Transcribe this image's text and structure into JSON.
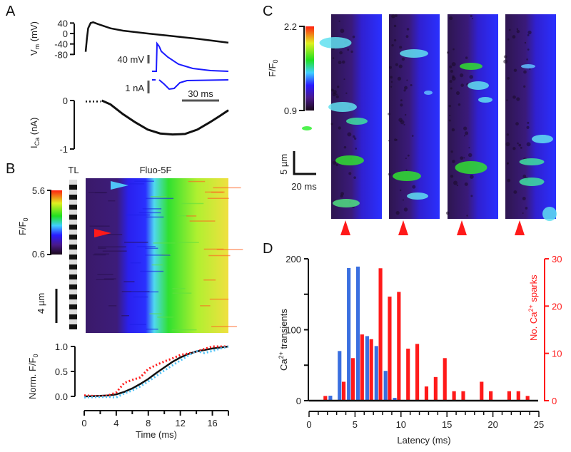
{
  "panels": {
    "a": "A",
    "b": "B",
    "c": "C",
    "d": "D"
  },
  "colors": {
    "blue_trace": "#1a1aff",
    "red": "#ff1a1a",
    "cyan": "#4fc3f7",
    "hist_blue": "#3a6fe0",
    "black": "#111111"
  },
  "panel_a": {
    "vm_label": {
      "main": "V",
      "sub": "m",
      "rest": " (mV)"
    },
    "vm_ticks": [
      "40",
      "0",
      "-40",
      "-80"
    ],
    "ica_label": {
      "main": "I",
      "sub": "Ca",
      "rest": " (nA)"
    },
    "ica_ticks": [
      "0",
      "-1"
    ],
    "scale_mv": "40 mV",
    "scale_na": "1 nA",
    "scale_ms": "30 ms"
  },
  "panel_b": {
    "tl_label": "TL",
    "image_title": "Fluo-5F",
    "colorbar_label": {
      "main": "F/F",
      "sub": "0"
    },
    "colorbar_max": "5.6",
    "colorbar_min": "0.6",
    "scale_um": "4 µm",
    "ylabel": {
      "main": "Norm. F/F",
      "sub": "0"
    },
    "yticks": [
      "1.0",
      "0.5",
      "0.0"
    ],
    "xticks": [
      "0",
      "4",
      "8",
      "12",
      "16"
    ],
    "xlabel": "Time (ms)"
  },
  "panel_c": {
    "colorbar_label": {
      "main": "F/F",
      "sub": "0"
    },
    "colorbar_max": "2.2",
    "colorbar_min": "0.9",
    "scale_um": "5 µm",
    "scale_ms": "20 ms"
  },
  "panel_d": {
    "ylabel_left": {
      "main": "Ca",
      "sup": "2+",
      "rest": " transients"
    },
    "ylabel_right": {
      "main": "No. Ca",
      "sup": "2+",
      "rest": " sparks"
    },
    "yticks_left": [
      "0",
      "100",
      "200"
    ],
    "yticks_right": [
      "0",
      "10",
      "20",
      "30"
    ],
    "xticks": [
      "0",
      "5",
      "10",
      "15",
      "20",
      "25"
    ],
    "xlabel": "Latency (ms)"
  },
  "chart_data": [
    {
      "id": "vm",
      "type": "line",
      "ylabel": "Vm (mV)",
      "ylim": [
        -80,
        40
      ],
      "x_units": "ms",
      "x": [
        0,
        1,
        2,
        4,
        6,
        10,
        20,
        30,
        50,
        70,
        90,
        115
      ],
      "y": [
        -70,
        -20,
        20,
        40,
        43,
        36,
        20,
        11,
        0,
        -10,
        -20,
        -35
      ]
    },
    {
      "id": "ica",
      "type": "line",
      "ylabel": "ICa (nA)",
      "ylim": [
        -1,
        0
      ],
      "x_units": "ms",
      "x": [
        13,
        20,
        30,
        40,
        50,
        60,
        70,
        80,
        90,
        100,
        108,
        115
      ],
      "y": [
        0,
        -0.08,
        -0.28,
        -0.45,
        -0.6,
        -0.68,
        -0.7,
        -0.69,
        -0.6,
        -0.45,
        -0.32,
        -0.2
      ],
      "dotted_prefix": {
        "x": [
          0,
          12
        ],
        "y": [
          -0.02,
          -0.02
        ]
      }
    },
    {
      "id": "norm_ff0",
      "type": "line",
      "xlabel": "Time (ms)",
      "ylabel": "Norm. F/F0",
      "xlim": [
        0,
        18
      ],
      "ylim": [
        0,
        1
      ],
      "x": [
        0,
        2,
        3,
        4,
        5,
        6,
        7,
        8,
        9,
        10,
        11,
        12,
        13,
        14,
        15,
        16,
        17,
        18
      ],
      "series": [
        {
          "name": "mean",
          "style": "solid",
          "color": "#111111",
          "values": [
            0,
            0.01,
            0.02,
            0.04,
            0.09,
            0.16,
            0.25,
            0.35,
            0.47,
            0.58,
            0.69,
            0.78,
            0.85,
            0.9,
            0.93,
            0.96,
            0.98,
            1.0
          ]
        },
        {
          "name": "red-arrow",
          "style": "dotted",
          "color": "#ff1a1a",
          "values": [
            0.02,
            0.0,
            0.02,
            0.08,
            0.27,
            0.33,
            0.38,
            0.55,
            0.63,
            0.7,
            0.76,
            0.83,
            0.86,
            0.9,
            0.95,
            1.0,
            1.0,
            1.0
          ]
        },
        {
          "name": "cyan-arrow",
          "style": "dotted",
          "color": "#4fc3f7",
          "values": [
            -0.02,
            -0.01,
            -0.01,
            -0.02,
            0.06,
            0.12,
            0.2,
            0.3,
            0.41,
            0.52,
            0.62,
            0.72,
            0.82,
            0.91,
            0.87,
            0.91,
            0.96,
            1.0
          ]
        }
      ]
    },
    {
      "id": "latency_histogram",
      "type": "bar",
      "xlabel": "Latency (ms)",
      "xlim": [
        0,
        25
      ],
      "bin_width": 1,
      "series": [
        {
          "name": "Ca2+ transients",
          "axis": "left",
          "ylim": [
            0,
            200
          ],
          "color": "#3a6fe0",
          "bins": [
            2,
            3,
            4,
            5,
            6,
            7,
            8,
            9
          ],
          "values": [
            7,
            70,
            187,
            189,
            91,
            77,
            42,
            4
          ]
        },
        {
          "name": "No. Ca2+ sparks",
          "axis": "right",
          "ylim": [
            0,
            30
          ],
          "color": "#ff1a1a",
          "bins": [
            1,
            3,
            4,
            5,
            6,
            7,
            8,
            9,
            10,
            11,
            12,
            13,
            14,
            15,
            16,
            18,
            19,
            21,
            22,
            23
          ],
          "values": [
            1,
            4,
            9,
            14,
            13,
            28,
            22,
            23,
            11,
            12,
            3,
            5,
            9,
            2,
            2,
            4,
            2,
            2,
            2,
            1
          ]
        }
      ]
    }
  ]
}
